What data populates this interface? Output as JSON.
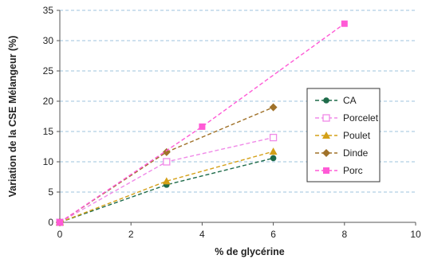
{
  "chart_data": {
    "type": "scatter",
    "xlabel": "% de glycérine",
    "ylabel": "Variation de la CSE Mélangeur (%)",
    "xlim": [
      0,
      10
    ],
    "ylim": [
      0,
      35
    ],
    "xticks": [
      0,
      2,
      4,
      6,
      8,
      10
    ],
    "yticks": [
      0,
      5,
      10,
      15,
      20,
      25,
      30,
      35
    ],
    "grid": "horizontal dashed",
    "legend_position": "right",
    "series": [
      {
        "name": "CA",
        "color": "#1e6b4a",
        "marker": "circle-filled",
        "x": [
          0,
          3,
          6
        ],
        "y": [
          0,
          6.2,
          10.6
        ]
      },
      {
        "name": "Porcelet",
        "color": "#f08ae8",
        "marker": "square-open",
        "x": [
          0,
          3,
          6
        ],
        "y": [
          0,
          10,
          14
        ]
      },
      {
        "name": "Poulet",
        "color": "#d4a017",
        "marker": "triangle-filled",
        "x": [
          0,
          3,
          6
        ],
        "y": [
          0,
          6.8,
          11.7
        ]
      },
      {
        "name": "Dinde",
        "color": "#a0722a",
        "marker": "diamond-filled",
        "x": [
          0,
          3,
          6
        ],
        "y": [
          0,
          11.6,
          19
        ]
      },
      {
        "name": "Porc",
        "color": "#ff5ad6",
        "marker": "square-filled",
        "x": [
          0,
          4,
          8
        ],
        "y": [
          0,
          15.8,
          32.8
        ]
      }
    ]
  }
}
